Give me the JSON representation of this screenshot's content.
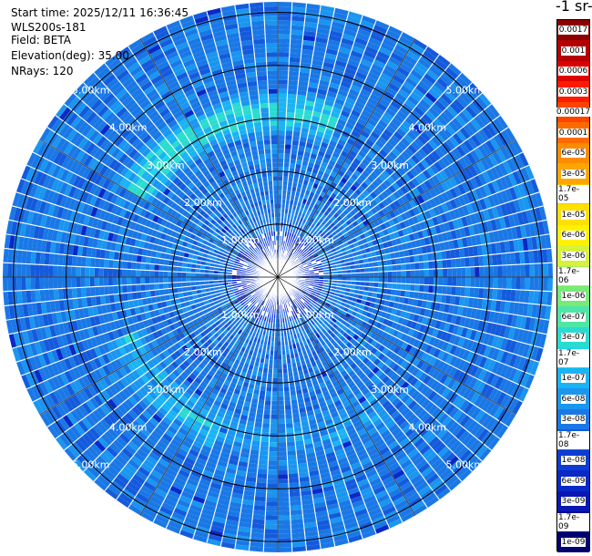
{
  "info": {
    "start_time": "Start time: 2025/12/11 16:36:45",
    "instrument": "WLS200s-181",
    "field": "Field: BETA",
    "elevation": "Elevation(deg): 35.00",
    "nrays": "NRays: 120"
  },
  "colorbar": {
    "unit_label": "-1 sr-",
    "labels": [
      "0.0017",
      "0.001",
      "0.0006",
      "0.0003",
      "0.00017",
      "0.0001",
      "6e-05",
      "3e-05",
      "1.7e-05",
      "1e-05",
      "6e-06",
      "3e-06",
      "1.7e-06",
      "1e-06",
      "6e-07",
      "3e-07",
      "1.7e-07",
      "1e-07",
      "6e-08",
      "3e-08",
      "1.7e-08",
      "1e-08",
      "6e-09",
      "3e-09",
      "1.7e-09",
      "1e-09"
    ],
    "colors": [
      "#8b0000",
      "#b40000",
      "#dd0000",
      "#ff1a00",
      "#ff4400",
      "#ff6a00",
      "#ff8c00",
      "#ffa500",
      "#ffc000",
      "#ffe000",
      "#fff200",
      "#d8f23a",
      "#a6ee5a",
      "#78ea78",
      "#4ee6a6",
      "#2adcd0",
      "#1ad6ee",
      "#1ab4f4",
      "#1a96f0",
      "#1a78e6",
      "#145adc",
      "#0e3cd2",
      "#0a28c8",
      "#0818b4",
      "#050a96",
      "#00006e"
    ]
  },
  "chart_data": {
    "type": "heatmap",
    "projection": "polar-ppi",
    "n_rays": 120,
    "max_range_km": 5.2,
    "range_rings_km": [
      1,
      2,
      3,
      4,
      5
    ],
    "ring_labels": [
      "1.00km",
      "2.00km",
      "3.00km",
      "4.00km",
      "5.00km"
    ],
    "field": "BETA",
    "elevation_deg": 35.0,
    "colors": {
      "background": "#1a66e0",
      "enhanced_band": "#2ad0f0",
      "near_field": "#0a2ad8",
      "ring": "#000000",
      "gap": "#ffffff"
    },
    "enhanced_band": {
      "center_range_km": 3.1,
      "width_km": 0.45,
      "sectors": [
        {
          "from_deg": -60,
          "to_deg": 20,
          "strength": 0.9
        },
        {
          "from_deg": 200,
          "to_deg": 250,
          "strength": 0.6
        },
        {
          "from_deg": 140,
          "to_deg": 200,
          "strength": 0.35
        }
      ]
    },
    "grid": true
  }
}
